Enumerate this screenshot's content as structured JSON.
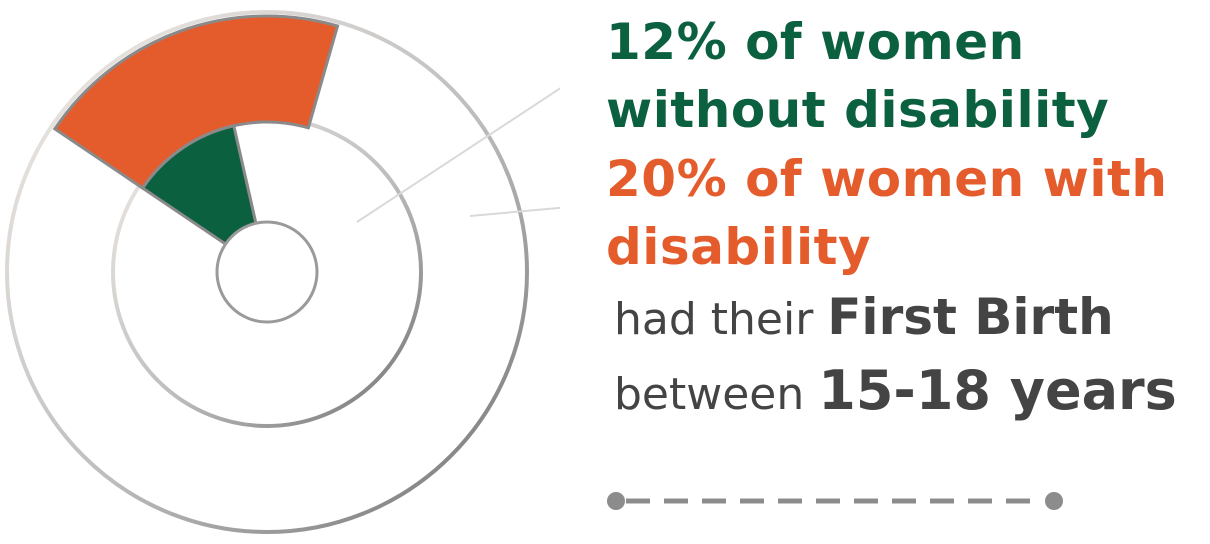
{
  "chart_data": {
    "type": "pie",
    "series": [
      {
        "name": "women without disability",
        "value": 12,
        "color": "#0b6040"
      },
      {
        "name": "women with disability",
        "value": 20,
        "color": "#e55c2c"
      }
    ],
    "unit": "%"
  },
  "labels": {
    "without": "12% of women without disability",
    "with": "20% of women with disability"
  },
  "caption": {
    "line1_prefix": "had their ",
    "line1_emphasis": "First Birth",
    "line2_prefix": "between ",
    "line2_emphasis": "15-18 years"
  }
}
